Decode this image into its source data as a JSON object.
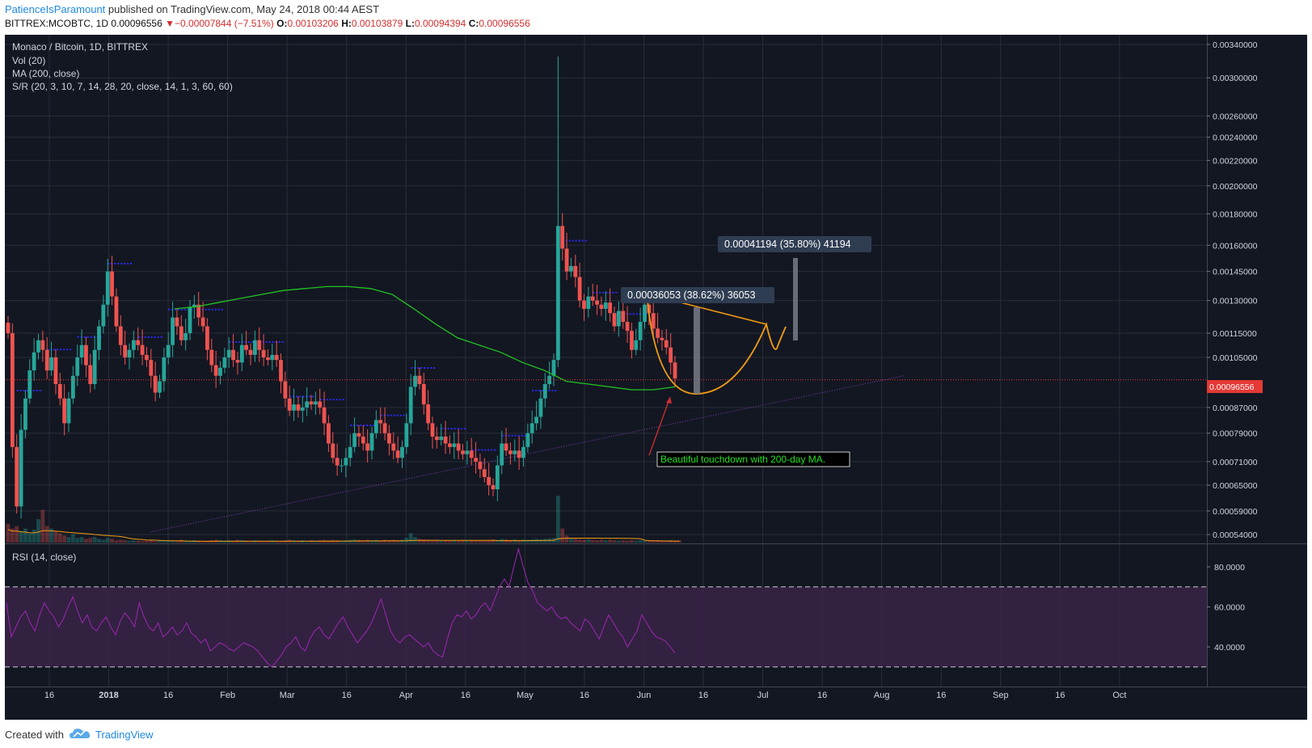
{
  "header": {
    "author": "PatienceIsParamount",
    "published": "published on TradingView.com, May 24, 2018 00:44 AEST",
    "symbol": "BITTREX:MCOBTC, 1D",
    "last": "0.00096556",
    "change": "−0.00007844 (−7.51%)",
    "o_label": "O:",
    "o_value": "0.00103206",
    "h_label": "H:",
    "h_value": "0.00103879",
    "l_label": "L:",
    "l_value": "0.00094394",
    "c_label": "C:",
    "c_value": "0.00096556"
  },
  "legend": {
    "title": "Monaco / Bitcoin, 1D, BITTREX",
    "vol": "Vol (20)",
    "ma": "MA (200, close)",
    "sr": "S/R (20, 3, 10, 7, 14, 28, 20, close, 14, 1, 3, 60, 60)",
    "rsi": "RSI (14, close)"
  },
  "footer": {
    "created": "Created with",
    "brand": "TradingView"
  },
  "colors": {
    "background": "#131722",
    "grid": "#2a2e39",
    "up": "#26a69a",
    "down": "#ef5350",
    "ma": "#22c322",
    "sr": "#2a2af5",
    "annotation": "#f39c12",
    "rsi": "#9c27b0",
    "rsi_band": "#3a2348",
    "trend": "#7b3fb5",
    "price_tag": "#e53935"
  },
  "chart_data": [
    {
      "type": "candlestick",
      "title": "Monaco / Bitcoin, 1D, BITTREX",
      "x_ticks": [
        "16",
        "2018",
        "16",
        "Feb",
        "Mar",
        "16",
        "Apr",
        "16",
        "May",
        "16",
        "Jun",
        "16",
        "Jul",
        "16",
        "Aug",
        "16",
        "Sep",
        "16",
        "Oct"
      ],
      "y_ticks": [
        "0.00340000",
        "0.00300000",
        "0.00260000",
        "0.00240000",
        "0.00220000",
        "0.00200000",
        "0.00180000",
        "0.00160000",
        "0.00145000",
        "0.00130000",
        "0.00115000",
        "0.00105000",
        "0.00087000",
        "0.00079000",
        "0.00071000",
        "0.00065000",
        "0.00059000",
        "0.00054000"
      ],
      "price_scale": "log",
      "last_price": "0.00096556",
      "close_series": [
        0.00115,
        0.00075,
        0.0006,
        0.0008,
        0.0009,
        0.001,
        0.00107,
        0.00112,
        0.00108,
        0.001,
        0.00105,
        0.00095,
        0.0009,
        0.00082,
        0.0009,
        0.00098,
        0.00105,
        0.0011,
        0.00102,
        0.00095,
        0.00108,
        0.00118,
        0.00128,
        0.00145,
        0.00132,
        0.00118,
        0.0011,
        0.00105,
        0.00108,
        0.00112,
        0.0011,
        0.00106,
        0.00104,
        0.00098,
        0.00092,
        0.00096,
        0.00105,
        0.0011,
        0.00122,
        0.00118,
        0.00112,
        0.00115,
        0.00127,
        0.00128,
        0.00122,
        0.00118,
        0.00108,
        0.00102,
        0.00098,
        0.00101,
        0.00105,
        0.00108,
        0.00104,
        0.00103,
        0.0011,
        0.00108,
        0.00106,
        0.00112,
        0.00108,
        0.00105,
        0.00104,
        0.00106,
        0.00104,
        0.00096,
        0.0009,
        0.00086,
        0.00088,
        0.00086,
        0.00087,
        0.00089,
        0.00088,
        0.00089,
        0.00087,
        0.00082,
        0.00076,
        0.00072,
        0.0007,
        0.0007,
        0.00072,
        0.00075,
        0.00079,
        0.00078,
        0.00076,
        0.00074,
        0.00079,
        0.00083,
        0.00082,
        0.00079,
        0.00076,
        0.00074,
        0.00072,
        0.00075,
        0.00082,
        0.00094,
        0.00098,
        0.00095,
        0.00088,
        0.00082,
        0.00078,
        0.00077,
        0.00078,
        0.00076,
        0.00075,
        0.00076,
        0.00074,
        0.00073,
        0.00074,
        0.00072,
        0.00071,
        0.00069,
        0.00067,
        0.00065,
        0.00064,
        0.0007,
        0.00076,
        0.00074,
        0.00073,
        0.00074,
        0.00072,
        0.00075,
        0.00079,
        0.00082,
        0.00084,
        0.0009,
        0.00095,
        0.00098,
        0.00104,
        0.00172,
        0.00158,
        0.00145,
        0.00148,
        0.00142,
        0.0013,
        0.00126,
        0.00132,
        0.0013,
        0.00128,
        0.00126,
        0.00129,
        0.00124,
        0.00118,
        0.00125,
        0.0012,
        0.00116,
        0.00108,
        0.00112,
        0.0012,
        0.00128,
        0.00124,
        0.00117,
        0.00113,
        0.00112,
        0.00109,
        0.00103,
        0.00097
      ],
      "ma200_series": [
        0.00126,
        0.00127,
        0.00129,
        0.00131,
        0.00133,
        0.00135,
        0.00136,
        0.00137,
        0.00137,
        0.00136,
        0.00133,
        0.00126,
        0.00119,
        0.00113,
        0.0011,
        0.00107,
        0.00103,
        0.001,
        0.00096,
        0.00095,
        0.00094,
        0.00093,
        0.00093,
        0.00094
      ],
      "annotations": [
        {
          "type": "measure",
          "label": "0.00036053 (38.62%) 36053"
        },
        {
          "type": "measure",
          "label": "0.00041194 (35.80%) 41194"
        },
        {
          "type": "callout",
          "text": "Beautiful touchdown with 200-day MA."
        }
      ],
      "volume_series": [
        0.4,
        0.3,
        0.35,
        0.25,
        0.3,
        0.2,
        0.28,
        0.5,
        0.7,
        0.35,
        0.3,
        0.25,
        0.2,
        0.15,
        0.12,
        0.18,
        0.1,
        0.12,
        0.08,
        0.1,
        0.12,
        0.08,
        0.06,
        0.1,
        0.08,
        0.05,
        0.06,
        0.05,
        0.04,
        0.05,
        0.04,
        0.03,
        0.04,
        0.05,
        0.03,
        0.04,
        0.03,
        0.05,
        0.04,
        0.03,
        0.06,
        0.04,
        0.03,
        0.05,
        0.04,
        0.03,
        0.04,
        0.05,
        0.06,
        0.05,
        0.04,
        0.05,
        0.04,
        0.06,
        0.05,
        0.04,
        0.03,
        0.05,
        0.04,
        0.03,
        0.04,
        0.05,
        0.04,
        0.03,
        0.05,
        0.06,
        0.05,
        0.04,
        0.05,
        0.04,
        0.05,
        0.04,
        0.05,
        0.06,
        0.05,
        0.06,
        0.05,
        0.04,
        0.05,
        0.06,
        0.07,
        0.06,
        0.05,
        0.06,
        0.05,
        0.06,
        0.05,
        0.06,
        0.05,
        0.06,
        0.05,
        0.06,
        0.1,
        0.2,
        0.12,
        0.08,
        0.07,
        0.06,
        0.05,
        0.06,
        0.05,
        0.06,
        0.05,
        0.06,
        0.05,
        0.06,
        0.05,
        0.06,
        0.05,
        0.06,
        0.05,
        0.06,
        0.07,
        0.06,
        0.08,
        0.07,
        0.06,
        0.07,
        0.06,
        0.07,
        0.06,
        0.07,
        0.08,
        0.07,
        0.08,
        0.09,
        0.1,
        1.0,
        0.3,
        0.15,
        0.1,
        0.08,
        0.07,
        0.06,
        0.07,
        0.06,
        0.05,
        0.06,
        0.05,
        0.06,
        0.05,
        0.04,
        0.05,
        0.04,
        0.05,
        0.04,
        0.05,
        0.04,
        0.05,
        0.04,
        0.05,
        0.04,
        0.04,
        0.05,
        0.04,
        0.05
      ]
    },
    {
      "type": "line",
      "title": "RSI (14, close)",
      "y_ticks": [
        "80.0000",
        "60.0000",
        "40.0000"
      ],
      "bands": [
        70,
        30
      ],
      "rsi_series": [
        62,
        45,
        50,
        55,
        58,
        52,
        48,
        56,
        62,
        58,
        55,
        50,
        54,
        60,
        65,
        58,
        52,
        56,
        50,
        48,
        52,
        55,
        50,
        46,
        53,
        57,
        54,
        50,
        62,
        55,
        50,
        48,
        52,
        45,
        47,
        50,
        46,
        48,
        52,
        47,
        45,
        42,
        44,
        38,
        40,
        42,
        41,
        39,
        38,
        40,
        42,
        41,
        40,
        38,
        35,
        32,
        30,
        33,
        36,
        40,
        42,
        45,
        40,
        38,
        44,
        48,
        50,
        46,
        44,
        48,
        52,
        55,
        50,
        46,
        42,
        45,
        48,
        52,
        58,
        64,
        56,
        48,
        44,
        42,
        45,
        46,
        44,
        42,
        40,
        42,
        38,
        36,
        35,
        44,
        52,
        56,
        55,
        58,
        54,
        56,
        60,
        62,
        58,
        64,
        70,
        74,
        70,
        80,
        89,
        80,
        72,
        68,
        62,
        60,
        58,
        60,
        56,
        54,
        55,
        52,
        50,
        48,
        54,
        52,
        48,
        44,
        50,
        56,
        52,
        48,
        45,
        40,
        44,
        48,
        56,
        52,
        48,
        45,
        44,
        43,
        40,
        37
      ]
    }
  ]
}
